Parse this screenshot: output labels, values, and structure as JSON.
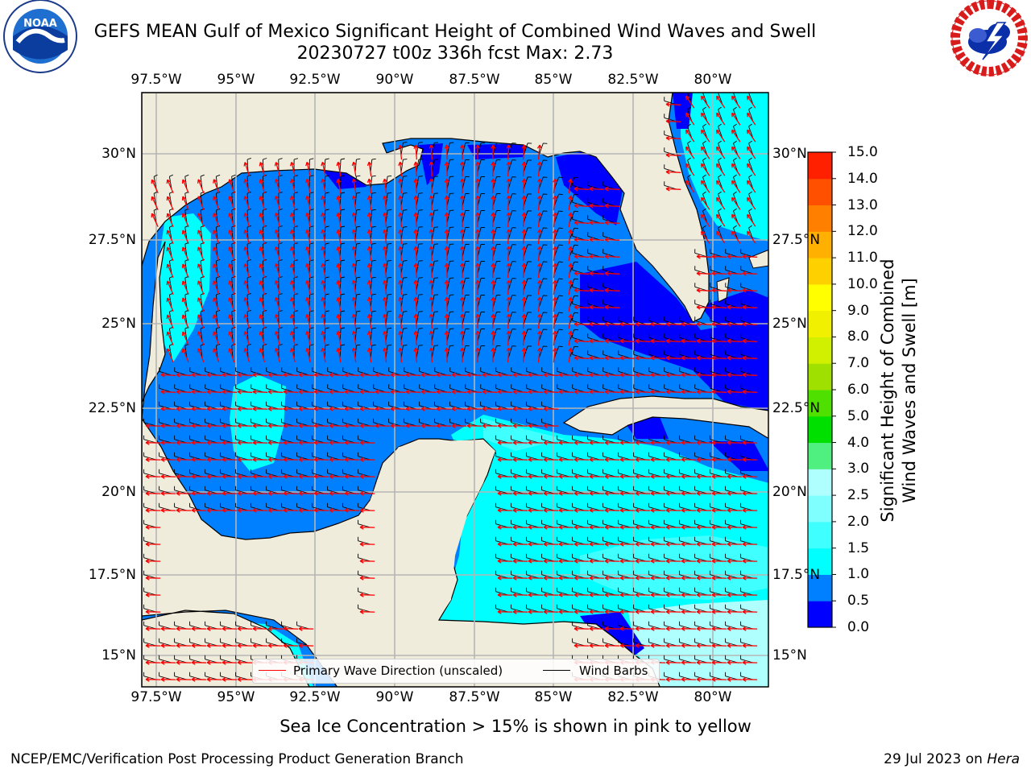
{
  "header": {
    "title_line1": "GEFS MEAN Gulf of Mexico Significant Height of Combined Wind Waves and Swell",
    "title_line2": "20230727 t00z 336h fcst   Max: 2.73",
    "left_logo_text": "NOAA",
    "left_logo_ring_text": "NATIONAL OCEANIC AND ATMOSPHERIC ADMINISTRATION · U.S. DEPARTMENT OF COMMERCE",
    "right_logo_ring_text": "NATIONAL WEATHER SERVICE"
  },
  "map": {
    "lon_ticks": [
      "97.5°W",
      "95°W",
      "92.5°W",
      "90°W",
      "87.5°W",
      "85°W",
      "82.5°W",
      "80°W"
    ],
    "lat_ticks": [
      "30°N",
      "27.5°N",
      "25°N",
      "22.5°N",
      "20°N",
      "17.5°N",
      "15°N"
    ],
    "lon_range": [
      -98.5,
      -78.8
    ],
    "lat_range": [
      14.0,
      31.8
    ],
    "grid": true,
    "land_color": "#efecdc",
    "coast_color": "#000000",
    "max_value": 2.73
  },
  "legend": {
    "placement": "bottom-center",
    "wave_label": "Primary Wave Direction (unscaled)",
    "wave_color": "#ff0000",
    "barb_label": "Wind Barbs",
    "barb_color": "#000000"
  },
  "colorbar": {
    "title_line1": "Significant Height of Combined",
    "title_line2": "Wind Waves and Swell [m]",
    "levels": [
      0.0,
      0.5,
      1.0,
      1.5,
      2.0,
      2.5,
      3.0,
      4.0,
      5.0,
      6.0,
      7.0,
      8.0,
      9.0,
      10.0,
      11.0,
      12.0,
      13.0,
      14.0,
      15.0
    ],
    "labels": [
      "0.0",
      "0.5",
      "1.0",
      "1.5",
      "2.0",
      "2.5",
      "3.0",
      "4.0",
      "5.0",
      "6.0",
      "7.0",
      "8.0",
      "9.0",
      "10.0",
      "11.0",
      "12.0",
      "13.0",
      "14.0",
      "15.0"
    ],
    "colors": [
      "#0000ff",
      "#0080ff",
      "#00ffff",
      "#40ffff",
      "#80ffff",
      "#b0ffff",
      "#50f080",
      "#00e000",
      "#50e000",
      "#a0e000",
      "#d0f000",
      "#f0f000",
      "#ffff00",
      "#ffd000",
      "#ffb000",
      "#ff8000",
      "#ff5000",
      "#ff2000"
    ]
  },
  "footer": {
    "note": "Sea Ice Concentration > 15% is shown in pink to yellow",
    "left": "NCEP/EMC/Verification Post Processing Product Generation Branch",
    "date": "29 Jul 2023 on ",
    "machine": "Hera"
  }
}
